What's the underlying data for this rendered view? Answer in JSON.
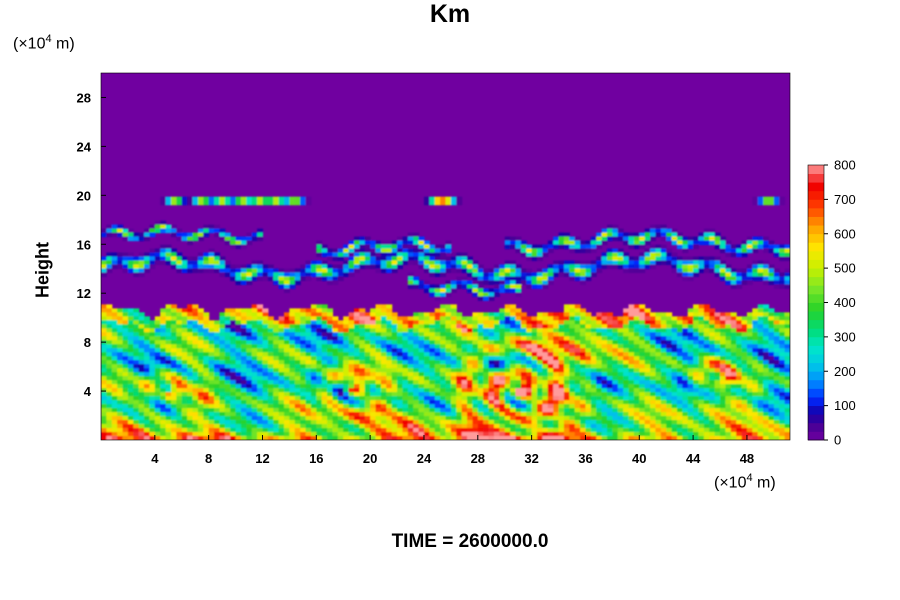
{
  "chart_data": {
    "type": "heatmap",
    "title": "Km",
    "ylabel": "Height",
    "xunit_prefix": "(×10",
    "xunit_exp": "4",
    "xunit_suffix": " m)",
    "yunit_prefix": "(×10",
    "yunit_exp": "4",
    "yunit_suffix": " m)",
    "time_label": "TIME = 2600000.0",
    "xlim": [
      0,
      51.2
    ],
    "ylim": [
      0,
      30
    ],
    "x_ticks": [
      4,
      8,
      12,
      16,
      20,
      24,
      28,
      32,
      36,
      40,
      44,
      48
    ],
    "y_ticks": [
      4,
      8,
      12,
      16,
      20,
      24,
      28
    ],
    "colorbar": {
      "range": [
        0,
        800
      ],
      "step": 25,
      "tick_labels": [
        0,
        100,
        200,
        300,
        400,
        500,
        600,
        700,
        800
      ]
    },
    "field_description": "Km field: high values (≈700–800) near the ground and in two large vortices centred near x≈31, y≈4 and x≈18, y≈4; a turbulent layer up to ≈11; thin filaments at ≈13–18; isolated patches near 19.5; ≈0 above ≈20."
  },
  "colors": {
    "background": "#ffffff",
    "low": "#7000a0",
    "high": "#ff9b9b"
  }
}
